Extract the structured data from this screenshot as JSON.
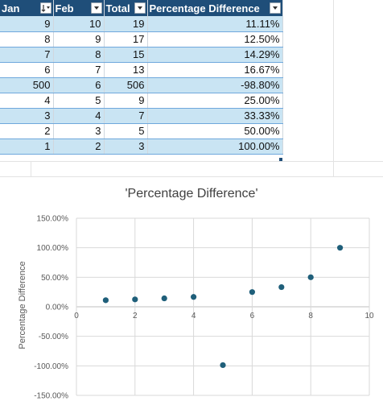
{
  "table": {
    "headers": [
      {
        "label": "Jan",
        "filter_icon": "sort-descending-filter-icon"
      },
      {
        "label": "Feb",
        "filter_icon": "dropdown-filter-icon"
      },
      {
        "label": "Total",
        "filter_icon": "dropdown-filter-icon"
      },
      {
        "label": "Percentage Difference",
        "filter_icon": "dropdown-filter-icon"
      }
    ],
    "rows": [
      {
        "jan": "9",
        "feb": "10",
        "total": "19",
        "pct": "11.11%"
      },
      {
        "jan": "8",
        "feb": "9",
        "total": "17",
        "pct": "12.50%"
      },
      {
        "jan": "7",
        "feb": "8",
        "total": "15",
        "pct": "14.29%"
      },
      {
        "jan": "6",
        "feb": "7",
        "total": "13",
        "pct": "16.67%"
      },
      {
        "jan": "500",
        "feb": "6",
        "total": "506",
        "pct": "-98.80%"
      },
      {
        "jan": "4",
        "feb": "5",
        "total": "9",
        "pct": "25.00%"
      },
      {
        "jan": "3",
        "feb": "4",
        "total": "7",
        "pct": "33.33%"
      },
      {
        "jan": "2",
        "feb": "3",
        "total": "5",
        "pct": "50.00%"
      },
      {
        "jan": "1",
        "feb": "2",
        "total": "3",
        "pct": "100.00%"
      }
    ]
  },
  "chart_data": {
    "type": "scatter",
    "title": "'Percentage Difference'",
    "xlabel": "",
    "ylabel": "Percentage Difference",
    "xlim": [
      0,
      10
    ],
    "ylim": [
      -1.5,
      1.5
    ],
    "x_ticks": [
      "0",
      "2",
      "4",
      "6",
      "8",
      "10"
    ],
    "x_tick_values": [
      0,
      2,
      4,
      6,
      8,
      10
    ],
    "y_ticks": [
      "150.00%",
      "100.00%",
      "50.00%",
      "0.00%",
      "-50.00%",
      "-100.00%",
      "-150.00%"
    ],
    "y_tick_values": [
      1.5,
      1.0,
      0.5,
      0.0,
      -0.5,
      -1.0,
      -1.5
    ],
    "grid": true,
    "points": [
      {
        "x": 1,
        "y": 0.1111
      },
      {
        "x": 2,
        "y": 0.125
      },
      {
        "x": 3,
        "y": 0.1429
      },
      {
        "x": 4,
        "y": 0.1667
      },
      {
        "x": 5,
        "y": -0.988
      },
      {
        "x": 6,
        "y": 0.25
      },
      {
        "x": 7,
        "y": 0.3333
      },
      {
        "x": 8,
        "y": 0.5
      },
      {
        "x": 9,
        "y": 1.0
      }
    ],
    "marker_color": "#1f5f7a"
  },
  "colors": {
    "header_bg": "#1f4e79",
    "band_bg": "#c9e4f3",
    "gridline": "#d9d9d9"
  }
}
